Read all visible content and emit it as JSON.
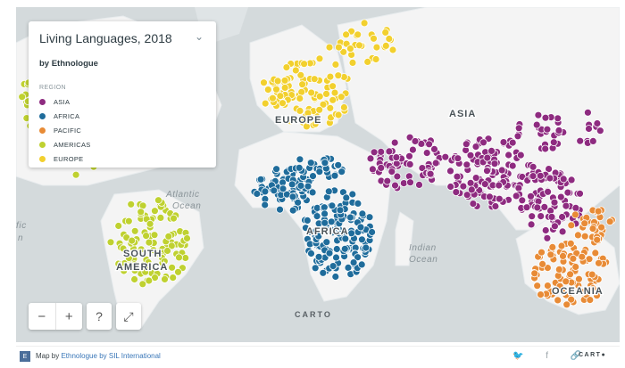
{
  "legend": {
    "title": "Living Languages, 2018",
    "subtitle": "by Ethnologue",
    "region_header": "REGION",
    "items": [
      {
        "label": "ASIA",
        "color": "#8e2b80"
      },
      {
        "label": "AFRICA",
        "color": "#1f6c9b"
      },
      {
        "label": "PACIFIC",
        "color": "#e88b36"
      },
      {
        "label": "AMERICAS",
        "color": "#bfd130"
      },
      {
        "label": "EUROPE",
        "color": "#f2d02e"
      }
    ]
  },
  "map_labels": {
    "europe": "EUROPE",
    "asia": "ASIA",
    "africa": "AFRICA",
    "south_america_1": "SOUTH",
    "south_america_2": "AMERICA",
    "oceania": "OCEANIA",
    "atlantic_1": "Atlantic",
    "atlantic_2": "Ocean",
    "indian_1": "Indian",
    "indian_2": "Ocean",
    "pacific_partial_1": "fic",
    "pacific_partial_2": "n"
  },
  "controls": {
    "zoom_out": "−",
    "zoom_in": "+",
    "help": "?",
    "fullscreen": "⤢"
  },
  "carto_watermark": "CARTO",
  "footer": {
    "badge": "E",
    "prefix": "Map by ",
    "link1": "Ethnologue",
    "link2": "by SIL International",
    "share_icons": "🐦 f 🔗",
    "carto": "CART●"
  }
}
